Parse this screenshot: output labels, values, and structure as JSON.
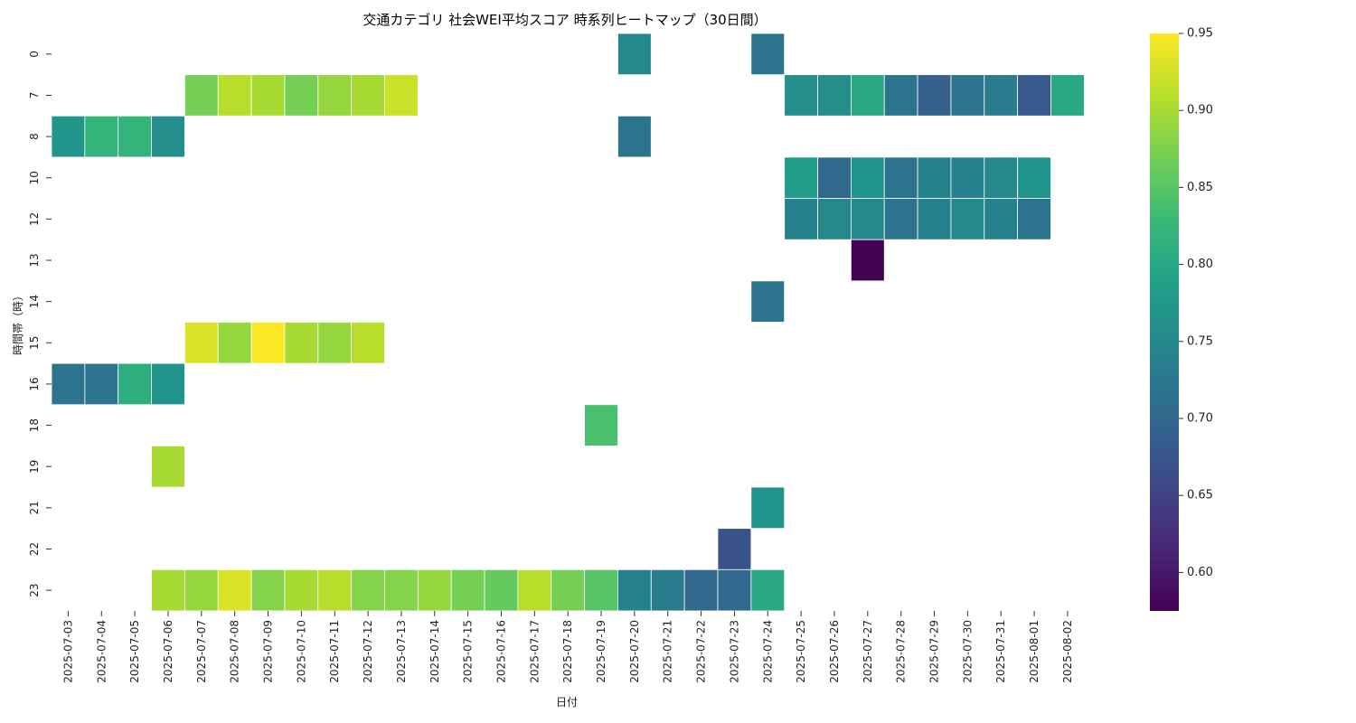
{
  "chart_data": {
    "type": "heatmap",
    "title": "交通カテゴリ 社会WEI平均スコア 時系列ヒートマップ（30日間）",
    "xlabel": "日付",
    "ylabel": "時間帯（時）",
    "x": [
      "2025-07-03",
      "2025-07-04",
      "2025-07-05",
      "2025-07-06",
      "2025-07-07",
      "2025-07-08",
      "2025-07-09",
      "2025-07-10",
      "2025-07-11",
      "2025-07-12",
      "2025-07-13",
      "2025-07-14",
      "2025-07-15",
      "2025-07-16",
      "2025-07-17",
      "2025-07-18",
      "2025-07-19",
      "2025-07-20",
      "2025-07-21",
      "2025-07-22",
      "2025-07-23",
      "2025-07-24",
      "2025-07-25",
      "2025-07-26",
      "2025-07-27",
      "2025-07-28",
      "2025-07-29",
      "2025-07-30",
      "2025-07-31",
      "2025-08-01",
      "2025-08-02"
    ],
    "y": [
      "0",
      "7",
      "8",
      "10",
      "12",
      "13",
      "14",
      "15",
      "16",
      "18",
      "19",
      "21",
      "22",
      "23"
    ],
    "colormap": "viridis",
    "colorbar": {
      "min": 0.575,
      "max": 0.95,
      "ticks": [
        0.6,
        0.65,
        0.7,
        0.75,
        0.8,
        0.85,
        0.9,
        0.95
      ]
    },
    "values": [
      [
        null,
        null,
        null,
        null,
        null,
        null,
        null,
        null,
        null,
        null,
        null,
        null,
        null,
        null,
        null,
        null,
        null,
        0.75,
        null,
        null,
        null,
        0.72,
        null,
        null,
        null,
        null,
        null,
        null,
        null,
        null,
        null
      ],
      [
        null,
        null,
        null,
        null,
        0.87,
        0.91,
        0.9,
        0.87,
        0.89,
        0.9,
        0.92,
        null,
        null,
        null,
        null,
        null,
        null,
        null,
        null,
        null,
        null,
        null,
        0.76,
        0.76,
        0.8,
        0.72,
        0.69,
        0.72,
        0.73,
        0.68,
        0.8
      ],
      [
        0.77,
        0.82,
        0.82,
        0.76,
        null,
        null,
        null,
        null,
        null,
        null,
        null,
        null,
        null,
        null,
        null,
        null,
        null,
        0.72,
        null,
        null,
        null,
        null,
        null,
        null,
        null,
        null,
        null,
        null,
        null,
        null,
        null
      ],
      [
        null,
        null,
        null,
        null,
        null,
        null,
        null,
        null,
        null,
        null,
        null,
        null,
        null,
        null,
        null,
        null,
        null,
        null,
        null,
        null,
        null,
        null,
        0.78,
        0.7,
        0.77,
        0.72,
        0.74,
        0.74,
        0.75,
        0.77,
        null
      ],
      [
        null,
        null,
        null,
        null,
        null,
        null,
        null,
        null,
        null,
        null,
        null,
        null,
        null,
        null,
        null,
        null,
        null,
        null,
        null,
        null,
        null,
        null,
        0.74,
        0.75,
        0.75,
        0.72,
        0.74,
        0.75,
        0.74,
        0.72,
        null
      ],
      [
        null,
        null,
        null,
        null,
        null,
        null,
        null,
        null,
        null,
        null,
        null,
        null,
        null,
        null,
        null,
        null,
        null,
        null,
        null,
        null,
        null,
        null,
        null,
        null,
        0.575,
        null,
        null,
        null,
        null,
        null,
        null
      ],
      [
        null,
        null,
        null,
        null,
        null,
        null,
        null,
        null,
        null,
        null,
        null,
        null,
        null,
        null,
        null,
        null,
        null,
        null,
        null,
        null,
        null,
        0.72,
        null,
        null,
        null,
        null,
        null,
        null,
        null,
        null,
        null
      ],
      [
        null,
        null,
        null,
        null,
        0.93,
        0.89,
        0.95,
        0.9,
        0.89,
        0.91,
        null,
        null,
        null,
        null,
        null,
        null,
        null,
        null,
        null,
        null,
        null,
        null,
        null,
        null,
        null,
        null,
        null,
        null,
        null,
        null,
        null
      ],
      [
        0.72,
        0.72,
        0.81,
        0.77,
        null,
        null,
        null,
        null,
        null,
        null,
        null,
        null,
        null,
        null,
        null,
        null,
        null,
        null,
        null,
        null,
        null,
        null,
        null,
        null,
        null,
        null,
        null,
        null,
        null,
        null,
        null
      ],
      [
        null,
        null,
        null,
        null,
        null,
        null,
        null,
        null,
        null,
        null,
        null,
        null,
        null,
        null,
        null,
        null,
        0.84,
        null,
        null,
        null,
        null,
        null,
        null,
        null,
        null,
        null,
        null,
        null,
        null,
        null,
        null
      ],
      [
        null,
        null,
        null,
        0.9,
        null,
        null,
        null,
        null,
        null,
        null,
        null,
        null,
        null,
        null,
        null,
        null,
        null,
        null,
        null,
        null,
        null,
        null,
        null,
        null,
        null,
        null,
        null,
        null,
        null,
        null,
        null
      ],
      [
        null,
        null,
        null,
        null,
        null,
        null,
        null,
        null,
        null,
        null,
        null,
        null,
        null,
        null,
        null,
        null,
        null,
        null,
        null,
        null,
        null,
        0.77,
        null,
        null,
        null,
        null,
        null,
        null,
        null,
        null,
        null
      ],
      [
        null,
        null,
        null,
        null,
        null,
        null,
        null,
        null,
        null,
        null,
        null,
        null,
        null,
        null,
        null,
        null,
        null,
        null,
        null,
        null,
        0.67,
        null,
        null,
        null,
        null,
        null,
        null,
        null,
        null,
        null,
        null
      ],
      [
        null,
        null,
        null,
        0.9,
        0.89,
        0.93,
        0.88,
        0.9,
        0.91,
        0.88,
        0.88,
        0.89,
        0.87,
        0.86,
        0.91,
        0.87,
        0.85,
        0.74,
        0.73,
        0.7,
        0.7,
        0.8,
        null,
        null,
        null,
        null,
        null,
        null,
        null,
        null,
        null
      ]
    ]
  }
}
